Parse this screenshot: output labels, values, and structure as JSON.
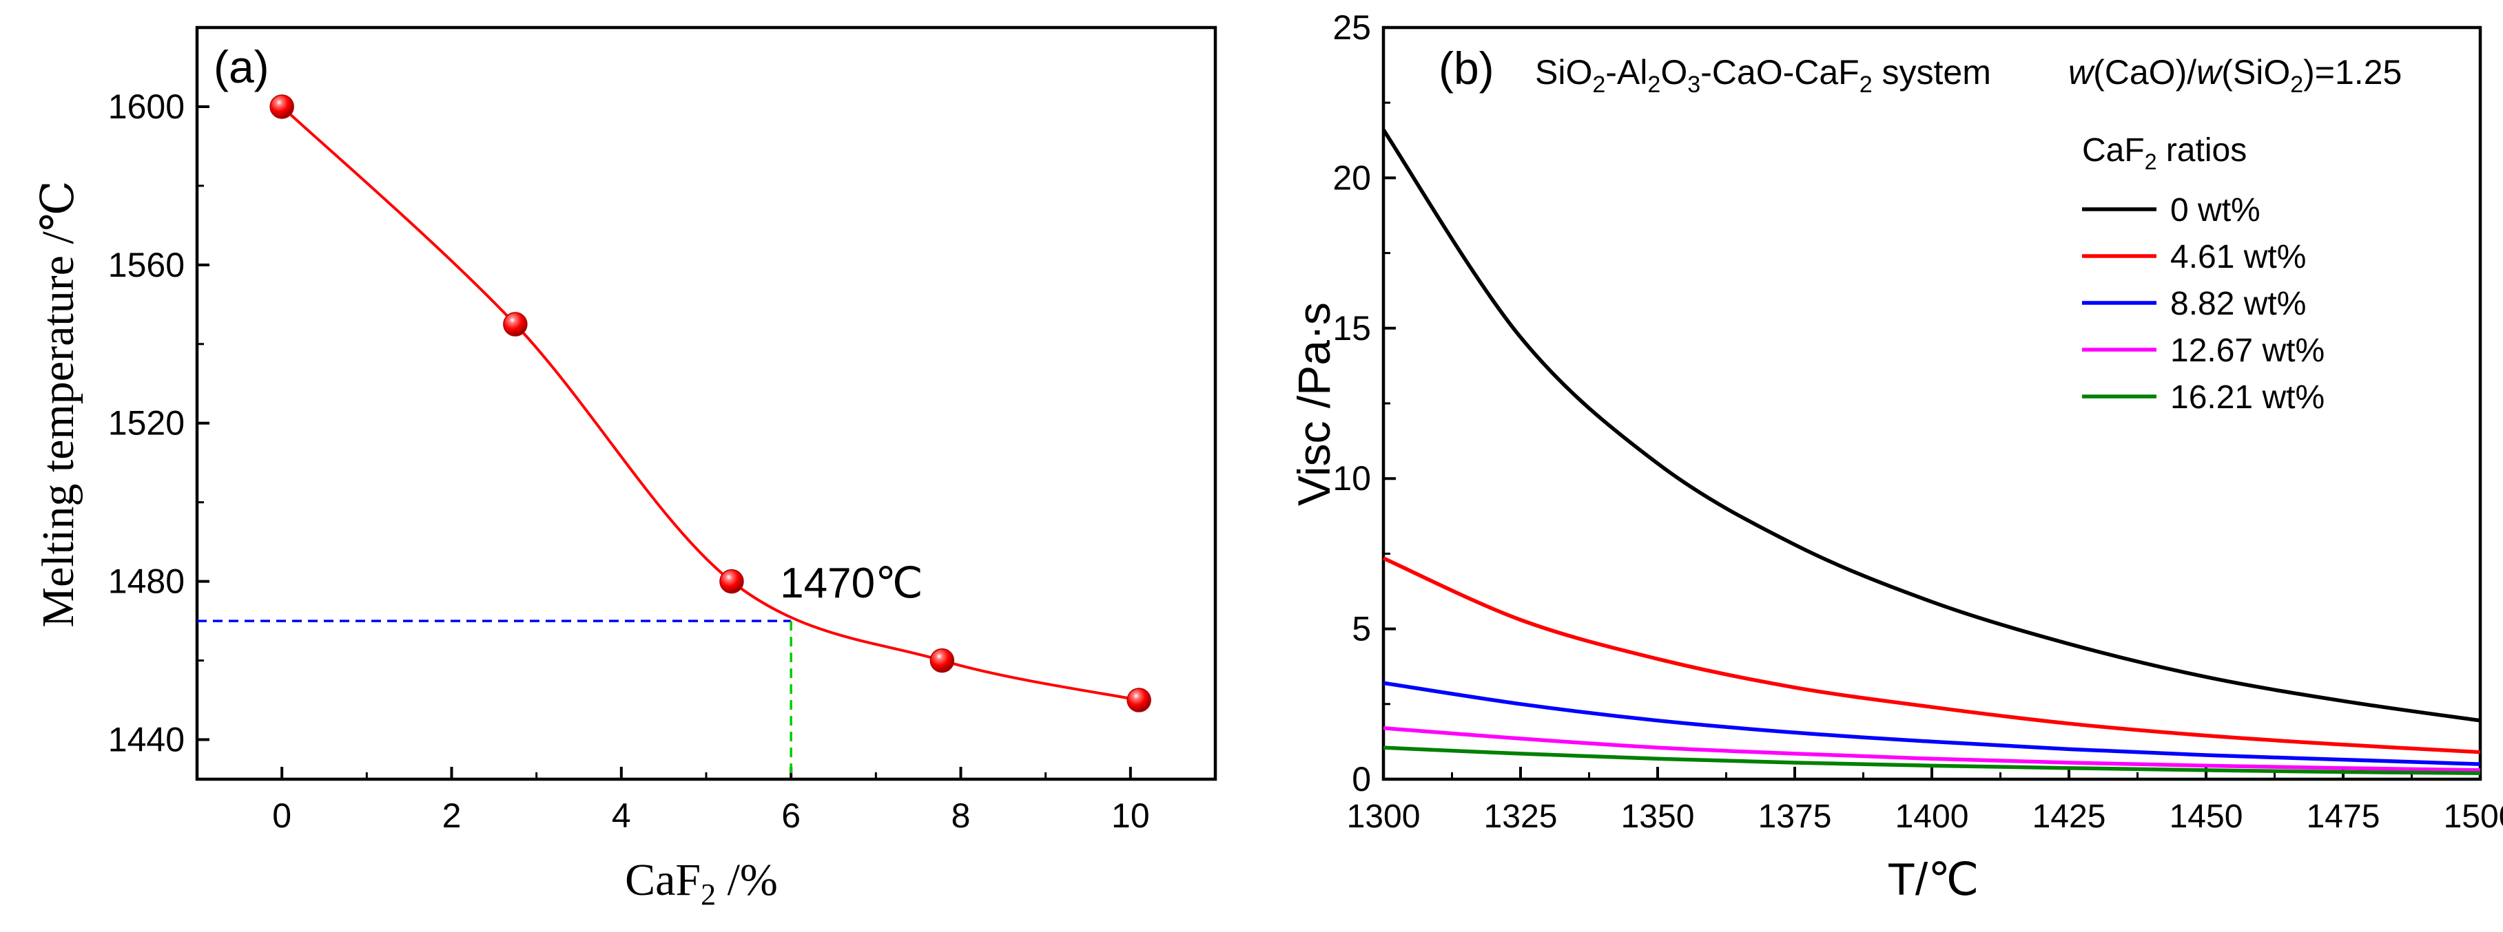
{
  "chart_data": [
    {
      "panel": "(a)",
      "type": "scatter",
      "series": [
        {
          "name": "Melting temperature",
          "x": [
            0,
            2.75,
            5.3,
            7.78,
            10.1
          ],
          "y": [
            1600,
            1545,
            1480,
            1460,
            1450
          ],
          "color": "#ff0000",
          "marker": "sphere",
          "line": "smooth"
        }
      ],
      "xlabel": {
        "main": "CaF",
        "sub": "2",
        "suffix": " /%"
      },
      "ylabel": "Melting temperature /℃",
      "xlim": [
        -1,
        11
      ],
      "ylim": [
        1430,
        1620
      ],
      "xticks": [
        0,
        2,
        4,
        6,
        8,
        10
      ],
      "xtick_labels": [
        "0",
        "2",
        "4",
        "6",
        "8",
        "10"
      ],
      "yticks": [
        1440,
        1480,
        1520,
        1560,
        1600
      ],
      "ytick_labels": [
        "1440",
        "1480",
        "1520",
        "1560",
        "1600"
      ],
      "reference": {
        "x": 6,
        "y": 1470,
        "label": "1470℃",
        "hline_color": "#0000ff",
        "vline_color": "#00cc00"
      }
    },
    {
      "panel": "(b)",
      "type": "line",
      "system_label": [
        {
          "t": "SiO",
          "s": "n"
        },
        {
          "t": "2",
          "s": "sub"
        },
        {
          "t": "-Al",
          "s": "n"
        },
        {
          "t": "2",
          "s": "sub"
        },
        {
          "t": "O",
          "s": "n"
        },
        {
          "t": "3",
          "s": "sub"
        },
        {
          "t": "-CaO-CaF",
          "s": "n"
        },
        {
          "t": "2",
          "s": "sub"
        },
        {
          "t": " system",
          "s": "n"
        }
      ],
      "ratio_label": [
        {
          "t": "w",
          "s": "i"
        },
        {
          "t": "(CaO)/",
          "s": "n"
        },
        {
          "t": "w",
          "s": "i"
        },
        {
          "t": "(SiO",
          "s": "n"
        },
        {
          "t": "2",
          "s": "sub"
        },
        {
          "t": ")=1.25",
          "s": "n"
        }
      ],
      "legend_title": [
        {
          "t": "CaF",
          "s": "n"
        },
        {
          "t": "2",
          "s": "sub"
        },
        {
          "t": " ratios",
          "s": "n"
        }
      ],
      "xlabel": "T/℃",
      "ylabel": "Visc /Pa·s",
      "xlim": [
        1300,
        1500
      ],
      "ylim": [
        0,
        25
      ],
      "xticks": [
        1300,
        1325,
        1350,
        1375,
        1400,
        1425,
        1450,
        1475,
        1500
      ],
      "xtick_labels": [
        "1300",
        "1325",
        "1350",
        "1375",
        "1400",
        "1425",
        "1450",
        "1475",
        "1500"
      ],
      "yticks": [
        0,
        5,
        10,
        15,
        20,
        25
      ],
      "ytick_labels": [
        "0",
        "5",
        "10",
        "15",
        "20",
        "25"
      ],
      "x": [
        1300,
        1325,
        1350,
        1375,
        1400,
        1425,
        1450,
        1475,
        1500
      ],
      "series": [
        {
          "name": "0 wt%",
          "color": "#000000",
          "values": [
            21.6,
            14.7,
            10.5,
            7.8,
            5.9,
            4.5,
            3.4,
            2.6,
            1.95
          ]
        },
        {
          "name": "4.61 wt%",
          "color": "#ff0000",
          "values": [
            7.35,
            5.3,
            4.0,
            3.05,
            2.4,
            1.85,
            1.45,
            1.15,
            0.9
          ]
        },
        {
          "name": "8.82 wt%",
          "color": "#0000ff",
          "values": [
            3.2,
            2.5,
            1.95,
            1.55,
            1.25,
            1.0,
            0.8,
            0.65,
            0.5
          ]
        },
        {
          "name": "12.67 wt%",
          "color": "#ff00ff",
          "values": [
            1.7,
            1.35,
            1.05,
            0.85,
            0.68,
            0.55,
            0.45,
            0.37,
            0.3
          ]
        },
        {
          "name": "16.21 wt%",
          "color": "#008000",
          "values": [
            1.05,
            0.85,
            0.68,
            0.55,
            0.45,
            0.37,
            0.3,
            0.24,
            0.2
          ]
        }
      ]
    }
  ]
}
